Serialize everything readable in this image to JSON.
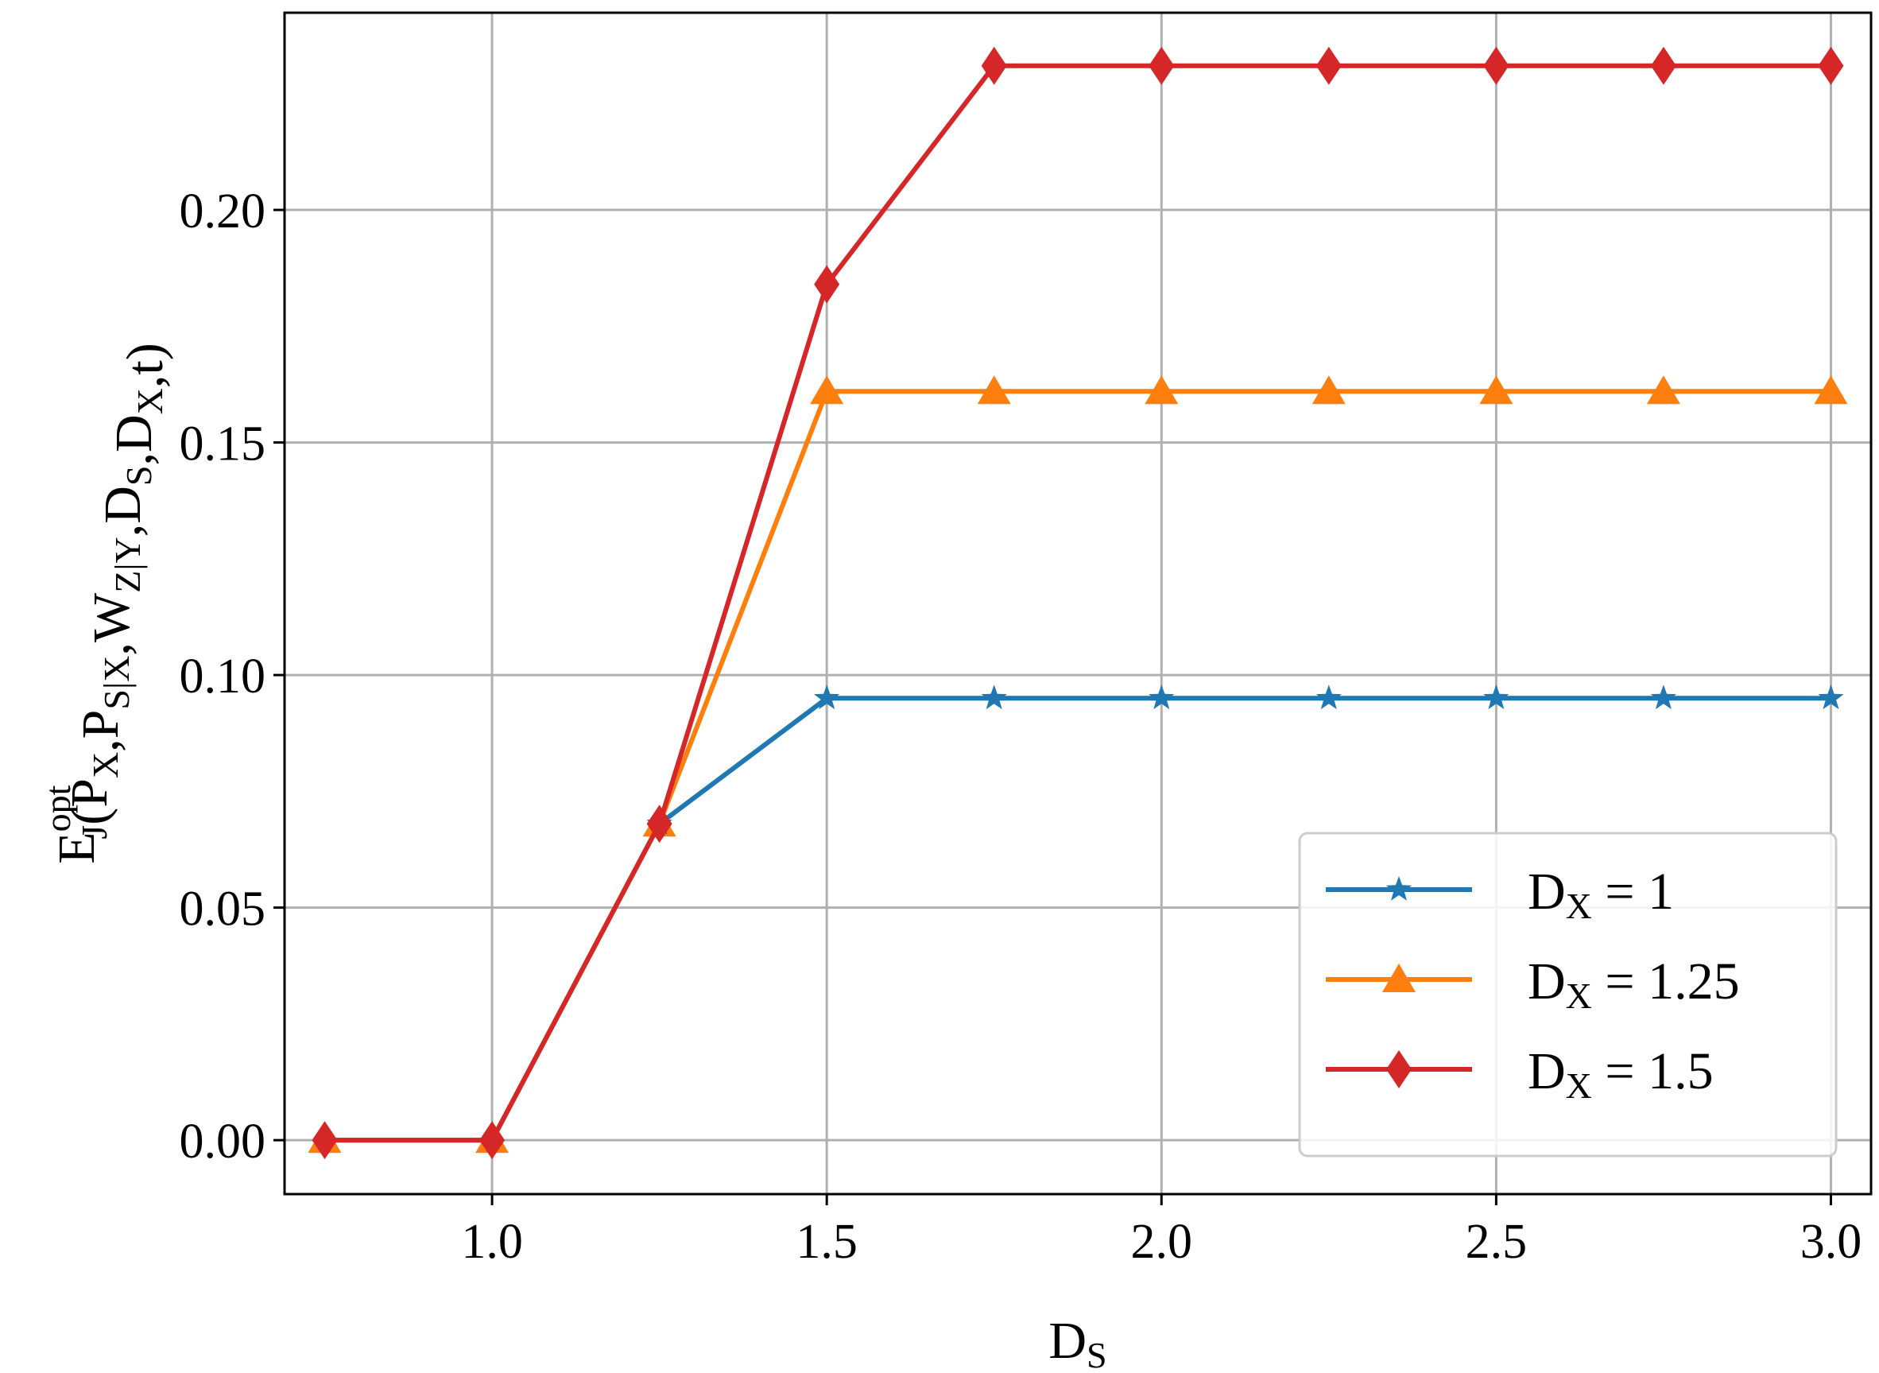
{
  "chart_data": {
    "type": "line",
    "xlabel": {
      "main": "D",
      "sub": "S"
    },
    "ylabel": {
      "base": "E",
      "sup": "opt",
      "sub": "J",
      "args": [
        {
          "main": "(P",
          "sub": "X"
        },
        {
          "main": ",P",
          "sub": "S|X"
        },
        {
          "main": ",W",
          "sub": "Z|Y"
        },
        {
          "main": ",D",
          "sub": "S"
        },
        {
          "main": ",D",
          "sub": "X"
        },
        {
          "main": ",t)",
          "sub": ""
        }
      ]
    },
    "xlim": [
      0.69,
      3.06
    ],
    "ylim": [
      -0.0116,
      0.2424
    ],
    "xticks": [
      1.0,
      1.5,
      2.0,
      2.5,
      3.0
    ],
    "xtick_labels": [
      "1.0",
      "1.5",
      "2.0",
      "2.5",
      "3.0"
    ],
    "yticks": [
      0.0,
      0.05,
      0.1,
      0.15,
      0.2
    ],
    "ytick_labels": [
      "0.00",
      "0.05",
      "0.10",
      "0.15",
      "0.20"
    ],
    "grid": true,
    "legend_position": "lower-right",
    "x": [
      0.75,
      1.0,
      1.25,
      1.5,
      1.75,
      2.0,
      2.25,
      2.5,
      2.75,
      3.0
    ],
    "series": [
      {
        "label": {
          "main": "D",
          "sub": "X",
          "rest": " = 1"
        },
        "color": "#1f77b4",
        "marker": "star",
        "values": [
          null,
          null,
          0.068,
          0.095,
          0.095,
          0.095,
          0.095,
          0.095,
          0.095,
          0.095
        ]
      },
      {
        "label": {
          "main": "D",
          "sub": "X",
          "rest": " = 1.25"
        },
        "color": "#ff7f0e",
        "marker": "triangle",
        "values": [
          0.0,
          0.0,
          0.068,
          0.161,
          0.161,
          0.161,
          0.161,
          0.161,
          0.161,
          0.161
        ]
      },
      {
        "label": {
          "main": "D",
          "sub": "X",
          "rest": " = 1.5"
        },
        "color": "#d62728",
        "marker": "diamond",
        "values": [
          0.0,
          0.0,
          0.068,
          0.184,
          0.231,
          0.231,
          0.231,
          0.231,
          0.231,
          0.231
        ]
      }
    ]
  }
}
